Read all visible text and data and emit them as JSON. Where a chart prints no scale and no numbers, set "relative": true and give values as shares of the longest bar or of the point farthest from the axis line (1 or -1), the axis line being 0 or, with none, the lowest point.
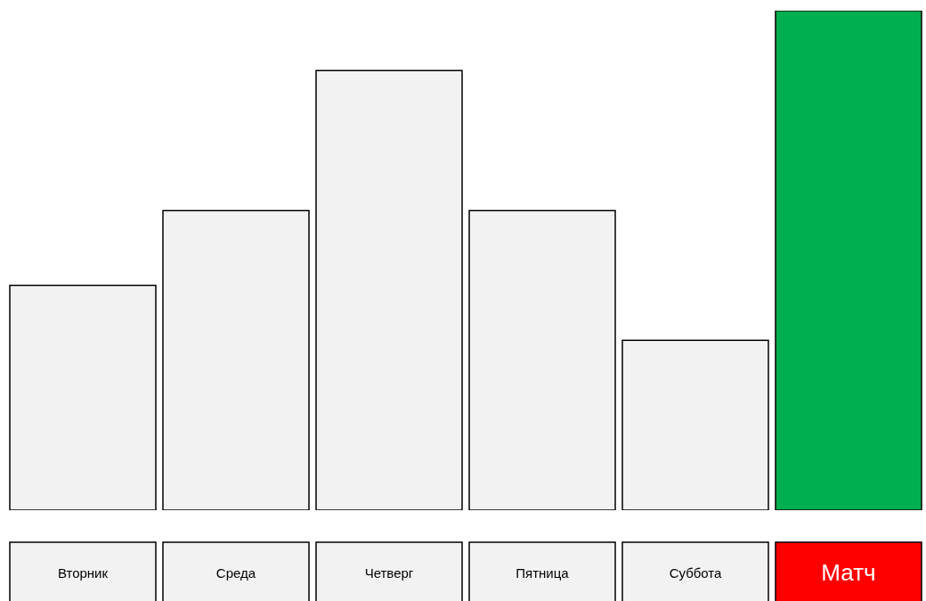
{
  "chart_data": {
    "type": "bar",
    "relative": true,
    "categories": [
      "Вторник",
      "Среда",
      "Четверг",
      "Пятница",
      "Суббота",
      "Матч"
    ],
    "values": [
      0.45,
      0.6,
      0.88,
      0.6,
      0.34,
      1
    ],
    "colors": [
      "#f2f2f2",
      "#f2f2f2",
      "#f2f2f2",
      "#f2f2f2",
      "#f2f2f2",
      "#00b050"
    ]
  }
}
